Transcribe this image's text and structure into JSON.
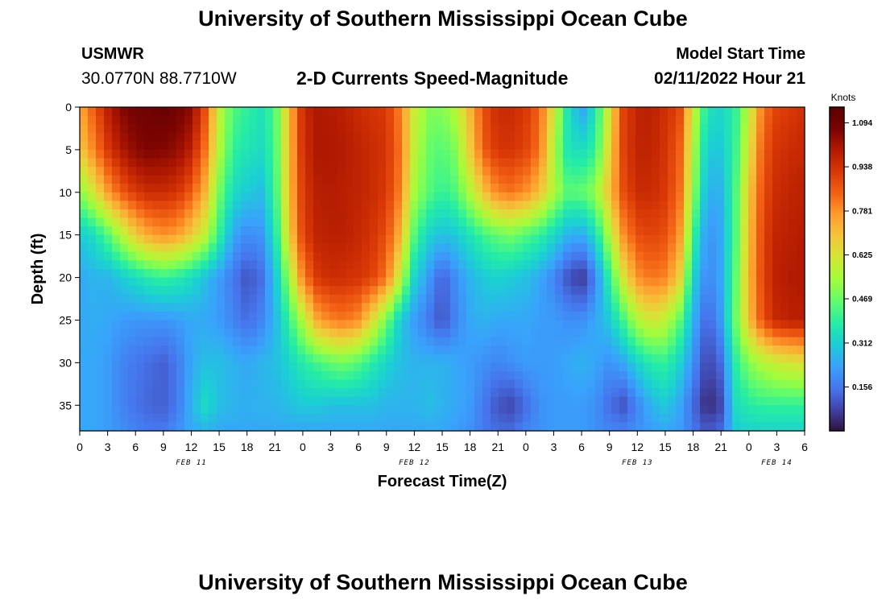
{
  "header": {
    "title": "University of Southern Mississippi Ocean Cube",
    "station": "USMWR",
    "coordinates": "30.0770N  88.7710W",
    "subtitle": "2-D Currents Speed-Magnitude",
    "model_start_label": "Model Start Time",
    "model_start_value": "02/11/2022 Hour 21"
  },
  "footer": {
    "title": "University of Southern Mississippi Ocean Cube"
  },
  "chart_data": {
    "type": "heatmap",
    "title": "2-D Currents Speed-Magnitude",
    "xlabel": "Forecast Time(Z)",
    "ylabel": "Depth (ft)",
    "x_tick_labels": [
      "0",
      "3",
      "6",
      "9",
      "12",
      "15",
      "18",
      "21",
      "0",
      "3",
      "6",
      "9",
      "12",
      "15",
      "18",
      "21",
      "0",
      "3",
      "6",
      "9",
      "12",
      "15",
      "18",
      "21",
      "0",
      "3",
      "6"
    ],
    "date_labels": [
      {
        "label": "FEB 11",
        "at_hour": 12
      },
      {
        "label": "FEB 12",
        "at_hour": 36
      },
      {
        "label": "FEB 13",
        "at_hour": 60
      },
      {
        "label": "FEB 14",
        "at_hour": 75
      }
    ],
    "xlim_hours": [
      0,
      78
    ],
    "y_ticks": [
      0,
      5,
      10,
      15,
      20,
      25,
      30,
      35
    ],
    "ylim": [
      0,
      38
    ],
    "y_inverted": true,
    "colorbar": {
      "title": "Knots",
      "ticks": [
        "1.094",
        "0.938",
        "0.781",
        "0.625",
        "0.469",
        "0.312",
        "0.156"
      ],
      "range": [
        0,
        1.15
      ]
    },
    "depth_values_ft": [
      0,
      5,
      10,
      15,
      20,
      25,
      30,
      35,
      38
    ],
    "hour_values": [
      0,
      1.5,
      3,
      4.5,
      6,
      7.5,
      9,
      10.5,
      12,
      13.5,
      15,
      16.5,
      18,
      19.5,
      21,
      22.5,
      24,
      25.5,
      27,
      28.5,
      30,
      31.5,
      33,
      34.5,
      36,
      37.5,
      39,
      40.5,
      42,
      43.5,
      45,
      46.5,
      48,
      49.5,
      51,
      52.5,
      54,
      55.5,
      57,
      58.5,
      60,
      61.5,
      63,
      64.5,
      66,
      67.5,
      69,
      70.5,
      72,
      73.5,
      75,
      76.5,
      78
    ],
    "speed_knots": [
      [
        0.74,
        0.86,
        0.98,
        1.06,
        1.09,
        1.1,
        1.12,
        1.09,
        1.05,
        0.88,
        0.58,
        0.44,
        0.4,
        0.36,
        0.43,
        0.7,
        0.95,
        1.0,
        0.99,
        0.98,
        0.95,
        0.93,
        0.92,
        0.8,
        0.6,
        0.5,
        0.5,
        0.57,
        0.72,
        0.88,
        0.95,
        0.95,
        0.92,
        0.84,
        0.62,
        0.36,
        0.22,
        0.36,
        0.62,
        0.9,
        0.97,
        0.98,
        0.94,
        0.9,
        0.6,
        0.36,
        0.33,
        0.39,
        0.58,
        0.82,
        0.9,
        0.92,
        0.94
      ],
      [
        0.68,
        0.8,
        0.92,
        1.0,
        1.05,
        1.07,
        1.06,
        1.04,
        0.98,
        0.82,
        0.56,
        0.4,
        0.36,
        0.34,
        0.42,
        0.7,
        0.94,
        1.0,
        1.0,
        0.99,
        0.97,
        0.95,
        0.93,
        0.82,
        0.58,
        0.47,
        0.44,
        0.5,
        0.68,
        0.86,
        0.93,
        0.93,
        0.9,
        0.82,
        0.56,
        0.36,
        0.34,
        0.4,
        0.66,
        0.9,
        0.97,
        0.97,
        0.93,
        0.86,
        0.56,
        0.3,
        0.3,
        0.4,
        0.62,
        0.86,
        0.93,
        0.95,
        0.96
      ],
      [
        0.5,
        0.62,
        0.76,
        0.86,
        0.92,
        0.95,
        0.95,
        0.93,
        0.86,
        0.72,
        0.48,
        0.34,
        0.3,
        0.28,
        0.4,
        0.7,
        0.92,
        0.98,
        0.99,
        0.98,
        0.97,
        0.95,
        0.92,
        0.8,
        0.54,
        0.45,
        0.4,
        0.44,
        0.56,
        0.7,
        0.8,
        0.82,
        0.78,
        0.7,
        0.56,
        0.45,
        0.46,
        0.52,
        0.7,
        0.88,
        0.95,
        0.95,
        0.92,
        0.84,
        0.52,
        0.25,
        0.26,
        0.42,
        0.68,
        0.88,
        0.95,
        0.97,
        0.98
      ],
      [
        0.3,
        0.34,
        0.44,
        0.56,
        0.68,
        0.75,
        0.78,
        0.76,
        0.68,
        0.58,
        0.4,
        0.24,
        0.19,
        0.21,
        0.35,
        0.66,
        0.9,
        0.97,
        0.98,
        0.98,
        0.96,
        0.93,
        0.88,
        0.72,
        0.44,
        0.32,
        0.28,
        0.3,
        0.36,
        0.42,
        0.46,
        0.48,
        0.44,
        0.4,
        0.33,
        0.26,
        0.24,
        0.34,
        0.56,
        0.78,
        0.88,
        0.9,
        0.88,
        0.78,
        0.42,
        0.2,
        0.24,
        0.42,
        0.7,
        0.9,
        0.97,
        0.98,
        0.99
      ],
      [
        0.24,
        0.26,
        0.26,
        0.3,
        0.34,
        0.38,
        0.4,
        0.38,
        0.34,
        0.28,
        0.22,
        0.16,
        0.1,
        0.14,
        0.28,
        0.52,
        0.8,
        0.92,
        0.95,
        0.94,
        0.93,
        0.9,
        0.82,
        0.58,
        0.32,
        0.22,
        0.12,
        0.2,
        0.26,
        0.3,
        0.32,
        0.3,
        0.28,
        0.24,
        0.18,
        0.1,
        0.05,
        0.18,
        0.4,
        0.62,
        0.78,
        0.82,
        0.8,
        0.68,
        0.32,
        0.18,
        0.24,
        0.44,
        0.72,
        0.9,
        0.98,
        0.99,
        1.0
      ],
      [
        0.24,
        0.25,
        0.24,
        0.22,
        0.21,
        0.21,
        0.21,
        0.22,
        0.24,
        0.24,
        0.22,
        0.18,
        0.14,
        0.18,
        0.26,
        0.4,
        0.56,
        0.74,
        0.8,
        0.82,
        0.78,
        0.64,
        0.48,
        0.3,
        0.22,
        0.16,
        0.1,
        0.18,
        0.24,
        0.26,
        0.24,
        0.24,
        0.24,
        0.22,
        0.22,
        0.2,
        0.2,
        0.24,
        0.3,
        0.42,
        0.56,
        0.62,
        0.58,
        0.46,
        0.26,
        0.12,
        0.22,
        0.46,
        0.7,
        0.88,
        0.96,
        0.98,
        0.98
      ],
      [
        0.24,
        0.24,
        0.22,
        0.18,
        0.16,
        0.14,
        0.12,
        0.16,
        0.24,
        0.28,
        0.28,
        0.26,
        0.24,
        0.26,
        0.28,
        0.32,
        0.38,
        0.42,
        0.46,
        0.48,
        0.44,
        0.38,
        0.32,
        0.28,
        0.26,
        0.26,
        0.26,
        0.24,
        0.22,
        0.2,
        0.18,
        0.2,
        0.22,
        0.22,
        0.22,
        0.24,
        0.26,
        0.24,
        0.2,
        0.24,
        0.32,
        0.38,
        0.4,
        0.32,
        0.2,
        0.07,
        0.14,
        0.38,
        0.5,
        0.56,
        0.6,
        0.62,
        0.64
      ],
      [
        0.24,
        0.24,
        0.22,
        0.18,
        0.15,
        0.13,
        0.12,
        0.16,
        0.26,
        0.34,
        0.28,
        0.26,
        0.25,
        0.26,
        0.26,
        0.28,
        0.3,
        0.3,
        0.28,
        0.28,
        0.28,
        0.28,
        0.26,
        0.26,
        0.26,
        0.28,
        0.26,
        0.24,
        0.22,
        0.16,
        0.1,
        0.08,
        0.14,
        0.2,
        0.22,
        0.22,
        0.22,
        0.2,
        0.14,
        0.1,
        0.18,
        0.26,
        0.3,
        0.24,
        0.14,
        0.03,
        0.08,
        0.34,
        0.38,
        0.4,
        0.4,
        0.4,
        0.4
      ],
      [
        0.24,
        0.24,
        0.22,
        0.2,
        0.18,
        0.16,
        0.16,
        0.2,
        0.24,
        0.26,
        0.24,
        0.24,
        0.24,
        0.24,
        0.24,
        0.24,
        0.24,
        0.24,
        0.24,
        0.24,
        0.24,
        0.24,
        0.24,
        0.24,
        0.24,
        0.24,
        0.24,
        0.22,
        0.2,
        0.16,
        0.14,
        0.14,
        0.18,
        0.2,
        0.22,
        0.22,
        0.22,
        0.2,
        0.18,
        0.18,
        0.2,
        0.22,
        0.24,
        0.22,
        0.16,
        0.1,
        0.14,
        0.3,
        0.32,
        0.32,
        0.32,
        0.32,
        0.32
      ]
    ]
  }
}
